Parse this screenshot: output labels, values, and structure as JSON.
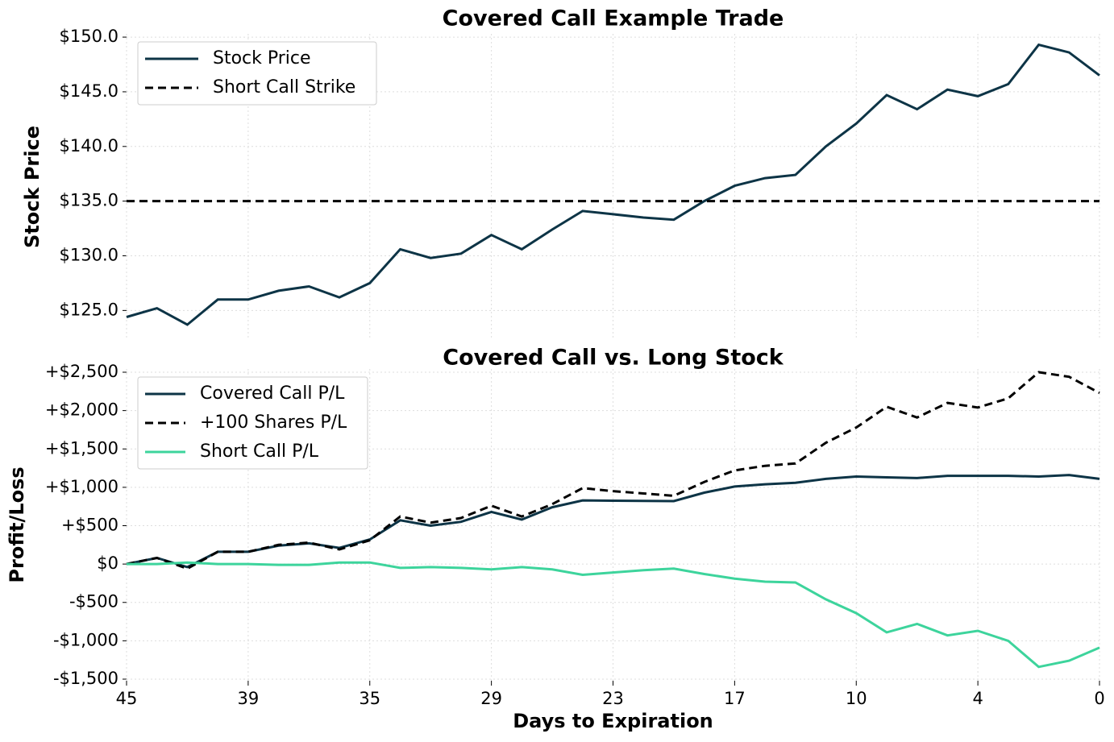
{
  "chart_data": [
    {
      "type": "line",
      "title": "Covered Call Example Trade",
      "ylabel": "Stock Price",
      "ylim": [
        122.3,
        150.3
      ],
      "yticks": [
        {
          "value": 125,
          "label": "$125.0"
        },
        {
          "value": 130,
          "label": "$130.0"
        },
        {
          "value": 135,
          "label": "$135.0"
        },
        {
          "value": 140,
          "label": "$140.0"
        },
        {
          "value": 145,
          "label": "$145.0"
        },
        {
          "value": 150,
          "label": "$150.0"
        }
      ],
      "grid": true,
      "legend": "upper left",
      "series": [
        {
          "name": "Stock Price",
          "color": "#0d3446",
          "dash": false,
          "values": [
            124.4,
            125.2,
            123.7,
            126.0,
            126.0,
            126.8,
            127.2,
            126.2,
            127.5,
            130.6,
            129.8,
            130.2,
            131.9,
            130.6,
            132.4,
            134.1,
            133.8,
            133.5,
            133.3,
            135.0,
            136.4,
            137.1,
            137.4,
            140.0,
            142.1,
            144.7,
            143.4,
            145.2,
            144.6,
            145.7,
            149.3,
            148.6,
            146.5
          ]
        },
        {
          "name": "Short Call Strike",
          "color": "#000000",
          "dash": true,
          "values": [
            135,
            135,
            135,
            135,
            135,
            135,
            135,
            135,
            135,
            135,
            135,
            135,
            135,
            135,
            135,
            135,
            135,
            135,
            135,
            135,
            135,
            135,
            135,
            135,
            135,
            135,
            135,
            135,
            135,
            135,
            135,
            135,
            135
          ]
        }
      ]
    },
    {
      "type": "line",
      "title": "Covered Call vs. Long Stock",
      "ylabel": "Profit/Loss",
      "xlabel": "Days to Expiration",
      "categories": [
        45,
        null,
        null,
        null,
        39,
        null,
        null,
        null,
        35,
        null,
        null,
        null,
        29,
        null,
        null,
        null,
        23,
        null,
        null,
        null,
        17,
        null,
        null,
        null,
        10,
        null,
        null,
        null,
        4,
        null,
        null,
        null,
        0
      ],
      "ylim": [
        -1521,
        2542
      ],
      "yticks": [
        {
          "value": -1500,
          "label": "-$1,500"
        },
        {
          "value": -1000,
          "label": "-$1,000"
        },
        {
          "value": -500,
          "label": "-$500"
        },
        {
          "value": 0,
          "label": "$0"
        },
        {
          "value": 500,
          "label": "+$500"
        },
        {
          "value": 1000,
          "label": "+$1,000"
        },
        {
          "value": 1500,
          "label": "+$1,500"
        },
        {
          "value": 2000,
          "label": "+$2,000"
        },
        {
          "value": 2500,
          "label": "+$2,500"
        }
      ],
      "grid": true,
      "legend": "upper left",
      "series": [
        {
          "name": "Covered Call P/L",
          "color": "#0d3446",
          "dash": false,
          "values": [
            0,
            80,
            -40,
            160,
            160,
            240,
            270,
            210,
            320,
            570,
            500,
            550,
            680,
            580,
            740,
            830,
            825,
            822,
            820,
            930,
            1010,
            1040,
            1060,
            1110,
            1140,
            1130,
            1120,
            1150,
            1150,
            1150,
            1140,
            1160,
            1110
          ]
        },
        {
          "name": "+100 Shares P/L",
          "color": "#000000",
          "dash": true,
          "values": [
            0,
            80,
            -60,
            160,
            160,
            250,
            280,
            190,
            310,
            620,
            540,
            600,
            760,
            620,
            780,
            990,
            950,
            920,
            890,
            1070,
            1220,
            1280,
            1310,
            1580,
            1780,
            2050,
            1910,
            2100,
            2040,
            2160,
            2500,
            2440,
            2230
          ]
        },
        {
          "name": "Short Call P/L",
          "color": "#3dd49c",
          "dash": false,
          "values": [
            0,
            0,
            20,
            0,
            0,
            -10,
            -10,
            20,
            20,
            -50,
            -40,
            -50,
            -70,
            -40,
            -70,
            -140,
            -110,
            -80,
            -60,
            -130,
            -190,
            -230,
            -240,
            -460,
            -640,
            -890,
            -780,
            -930,
            -870,
            -1000,
            -1340,
            -1260,
            -1090
          ]
        }
      ]
    }
  ]
}
